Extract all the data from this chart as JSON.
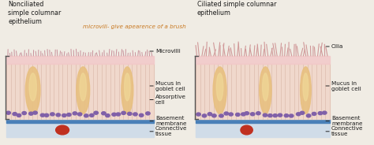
{
  "bg_color": "#f0ece4",
  "left_label": "Nonciliated\nsimple columnar\nepithelium",
  "right_label": "Ciliated simple columnar\nepithelium",
  "center_annotation": "microvili- give apearence of a brush",
  "colors": {
    "epithelium_pink": "#f2c8c8",
    "epithelium_body": "#f0d8cc",
    "cell_line": "#d4b0a0",
    "goblet_fill": "#e8c080",
    "goblet_light": "#f0d898",
    "basement_blue": "#4a80b8",
    "connective": "#b8ccd8",
    "connective_light": "#d0dce8",
    "nucleus": "#8060a8",
    "blood_vessel": "#c03020",
    "center_text_color": "#c87820",
    "label_color": "#1a1a1a",
    "ann_color": "#1a1a1a",
    "white": "#ffffff"
  },
  "figsize": [
    4.74,
    1.84
  ],
  "dpi": 100
}
